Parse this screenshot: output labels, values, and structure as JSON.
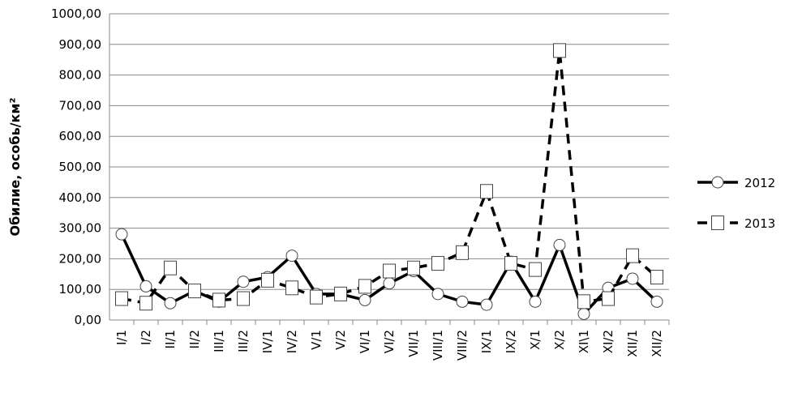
{
  "chart_data": {
    "type": "line",
    "y_label": "Обилие, особь/км²",
    "categories": [
      "I/1",
      "I/2",
      "II/1",
      "II/2",
      "III/1",
      "III/2",
      "IV/1",
      "IV/2",
      "V/1",
      "V/2",
      "VI/1",
      "VI/2",
      "VII/1",
      "VIII/1",
      "VIII/2",
      "IX/1",
      "IX/2",
      "X/1",
      "X/2",
      "XI\\1",
      "XI/2",
      "XII/1",
      "XII/2"
    ],
    "series": [
      {
        "name": "2012",
        "color": "#000000",
        "line_style": "solid",
        "marker": "circle",
        "values": [
          280,
          110,
          55,
          95,
          60,
          125,
          140,
          210,
          85,
          85,
          65,
          120,
          160,
          85,
          60,
          50,
          190,
          60,
          245,
          20,
          105,
          135,
          60
        ]
      },
      {
        "name": "2013",
        "color": "#000000",
        "line_style": "dashed",
        "marker": "square",
        "values": [
          70,
          55,
          170,
          95,
          65,
          70,
          130,
          105,
          75,
          85,
          110,
          160,
          170,
          185,
          220,
          420,
          185,
          165,
          880,
          60,
          70,
          210,
          140
        ]
      }
    ],
    "ylim": [
      0,
      1000
    ],
    "yticks": [
      {
        "value": 0,
        "label": "0,00"
      },
      {
        "value": 100,
        "label": "100,00"
      },
      {
        "value": 200,
        "label": "200,00"
      },
      {
        "value": 300,
        "label": "300,00"
      },
      {
        "value": 400,
        "label": "400,00"
      },
      {
        "value": 500,
        "label": "500,00"
      },
      {
        "value": 600,
        "label": "600,00"
      },
      {
        "value": 700,
        "label": "700,00"
      },
      {
        "value": 800,
        "label": "800,00"
      },
      {
        "value": 900,
        "label": "900,00"
      },
      {
        "value": 1000,
        "label": "1000,00"
      }
    ],
    "grid": true,
    "legend": "right"
  }
}
